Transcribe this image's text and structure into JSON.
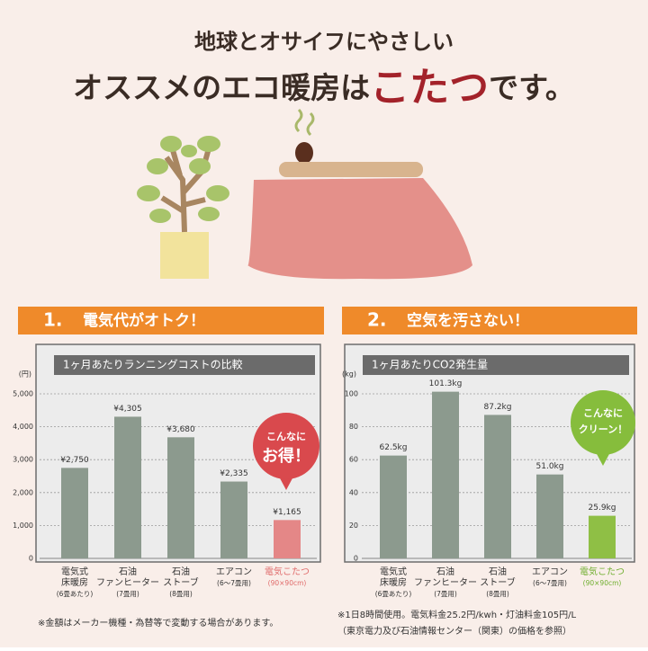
{
  "header": {
    "line1": "地球とオサイフにやさしい",
    "line2_before": "オススメのエコ暖房は",
    "line2_highlight": "こたつ",
    "line2_after": "です。"
  },
  "sections": [
    {
      "number": "1.",
      "title": "電気代がオトク！"
    },
    {
      "number": "2.",
      "title": "空気を汚さない！"
    }
  ],
  "chart_data": [
    {
      "type": "bar",
      "title": "1ヶ月あたりランニングコストの比較",
      "y_unit": "(円)",
      "categories": [
        "電気式\n床暖房",
        "石油\nファンヒーター",
        "石油\nストーブ",
        "エアコン",
        "電気こたつ"
      ],
      "category_notes": [
        "(6畳あたり)",
        "(7畳用)",
        "(8畳用)",
        "(6～7畳用)",
        "(90×90cm)"
      ],
      "values": [
        2750,
        4305,
        3680,
        2335,
        1165
      ],
      "value_labels": [
        "¥2,750",
        "¥4,305",
        "¥3,680",
        "¥2,335",
        "¥1,165"
      ],
      "colors": [
        "#8c9a8e",
        "#8c9a8e",
        "#8c9a8e",
        "#8c9a8e",
        "#e48787"
      ],
      "highlight_color": "#e06a6a",
      "ylim": [
        0,
        5000
      ],
      "yticks": [
        0,
        {
          "value": 1000,
          "label": "1,000"
        },
        {
          "value": 2000,
          "label": "2,000"
        },
        {
          "value": 3000,
          "label": "3,000"
        },
        {
          "value": 4000,
          "label": "4,000"
        },
        {
          "value": 5000,
          "label": "5,000"
        }
      ],
      "grid": true,
      "callout": {
        "lines": [
          "こんなに",
          "お得！"
        ],
        "color": "#d9494d"
      },
      "footnotes": [
        "※金額はメーカー機種・為替等で変動する場合があります。"
      ]
    },
    {
      "type": "bar",
      "title": "1ヶ月あたりCO2発生量",
      "y_unit": "(kg)",
      "categories": [
        "電気式\n床暖房",
        "石油\nファンヒーター",
        "石油\nストーブ",
        "エアコン",
        "電気こたつ"
      ],
      "category_notes": [
        "(6畳あたり)",
        "(7畳用)",
        "(8畳用)",
        "(6～7畳用)",
        "(90×90cm)"
      ],
      "values": [
        62.5,
        101.3,
        87.2,
        51.0,
        25.9
      ],
      "value_labels": [
        "62.5kg",
        "101.3kg",
        "87.2kg",
        "51.0kg",
        "25.9kg"
      ],
      "colors": [
        "#8c9a8e",
        "#8c9a8e",
        "#8c9a8e",
        "#8c9a8e",
        "#8fbf45"
      ],
      "highlight_color": "#6fae2e",
      "ylim": [
        0,
        100
      ],
      "yticks": [
        0,
        20,
        40,
        60,
        80,
        100
      ],
      "grid": true,
      "callout": {
        "lines": [
          "こんなに",
          "クリーン！"
        ],
        "color": "#86bd3c"
      },
      "footnotes": [
        "※1日8時間使用。電気料金25.2円/kwh・灯油料金105円/L",
        "（東京電力及び石油情報センター（関東）の価格を参照）"
      ]
    }
  ]
}
